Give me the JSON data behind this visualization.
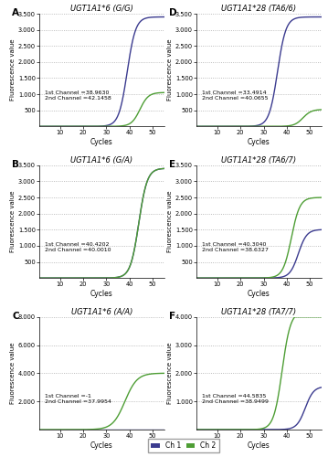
{
  "panels": [
    {
      "label": "A",
      "title": "UGT1A1*6 (G/G)",
      "ch1_ct": "=38.9630",
      "ch2_ct": "=42.1458",
      "ch1_color": "#3b3b8f",
      "ch2_color": "#4e9e35",
      "ylim": [
        0,
        3500
      ],
      "yticks": [
        500,
        1000,
        1500,
        2000,
        2500,
        3000,
        3500
      ],
      "ch1_shift": 39,
      "ch2_shift": 44.5,
      "ch1_scale": 3400,
      "ch2_scale": 1050,
      "ch1_steep": 0.55,
      "ch2_steep": 0.55
    },
    {
      "label": "B",
      "title": "UGT1A1*6 (G/A)",
      "ch1_ct": "=40.4202",
      "ch2_ct": "=40.0010",
      "ch1_color": "#3b3b8f",
      "ch2_color": "#4e9e35",
      "ylim": [
        0,
        3500
      ],
      "yticks": [
        500,
        1000,
        1500,
        2000,
        2500,
        3000,
        3500
      ],
      "ch1_shift": 44,
      "ch2_shift": 44,
      "ch1_scale": 3400,
      "ch2_scale": 3400,
      "ch1_steep": 0.55,
      "ch2_steep": 0.55
    },
    {
      "label": "C",
      "title": "UGT1A1*6 (A/A)",
      "ch1_ct": "=-1",
      "ch2_ct": "=37.9954",
      "ch1_color": "#3b3b8f",
      "ch2_color": "#4e9e35",
      "ylim": [
        0,
        8000
      ],
      "yticks": [
        2000,
        4000,
        6000,
        8000
      ],
      "ch1_shift": 999,
      "ch2_shift": 38,
      "ch1_scale": 0,
      "ch2_scale": 4000,
      "ch1_steep": 0.55,
      "ch2_steep": 0.38
    },
    {
      "label": "D",
      "title": "UGT1A1*28 (TA6/6)",
      "ch1_ct": "=33.4914",
      "ch2_ct": "=40.0655",
      "ch1_color": "#3b3b8f",
      "ch2_color": "#4e9e35",
      "ylim": [
        0,
        3500
      ],
      "yticks": [
        500,
        1000,
        1500,
        2000,
        2500,
        3000,
        3500
      ],
      "ch1_shift": 36,
      "ch2_shift": 47,
      "ch1_scale": 3400,
      "ch2_scale": 520,
      "ch1_steep": 0.55,
      "ch2_steep": 0.55
    },
    {
      "label": "E",
      "title": "UGT1A1*28 (TA6/7)",
      "ch1_ct": "=40.3040",
      "ch2_ct": "=38.6327",
      "ch1_color": "#3b3b8f",
      "ch2_color": "#4e9e35",
      "ylim": [
        0,
        3500
      ],
      "yticks": [
        500,
        1000,
        1500,
        2000,
        2500,
        3000,
        3500
      ],
      "ch1_shift": 45,
      "ch2_shift": 42,
      "ch1_scale": 1500,
      "ch2_scale": 2500,
      "ch1_steep": 0.55,
      "ch2_steep": 0.55
    },
    {
      "label": "F",
      "title": "UGT1A1*28 (TA7/7)",
      "ch1_ct": "=44.5835",
      "ch2_ct": "=38.9499",
      "ch1_color": "#3b3b8f",
      "ch2_color": "#4e9e35",
      "ylim": [
        0,
        4000
      ],
      "yticks": [
        1000,
        2000,
        3000,
        4000
      ],
      "ch1_shift": 48,
      "ch2_shift": 38,
      "ch1_scale": 1500,
      "ch2_scale": 4200,
      "ch1_steep": 0.55,
      "ch2_steep": 0.55
    }
  ],
  "bg_color": "#ffffff",
  "plot_bg": "#ffffff",
  "ch1_legend": "Ch 1",
  "ch2_legend": "Ch 2",
  "ch1_legend_color": "#3b3b8f",
  "ch2_legend_color": "#4e9e35",
  "xlim": [
    1,
    55
  ],
  "xticks": [
    10,
    20,
    30,
    40,
    50
  ]
}
